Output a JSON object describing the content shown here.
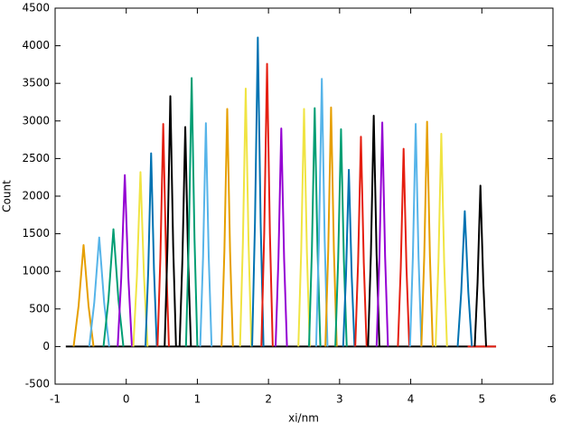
{
  "chart_data": {
    "type": "line",
    "xlabel": "xi/nm",
    "ylabel": "Count",
    "xlim": [
      -1,
      6
    ],
    "ylim": [
      -500,
      4500
    ],
    "xticks": [
      -1,
      0,
      1,
      2,
      3,
      4,
      5,
      6
    ],
    "yticks": [
      -500,
      0,
      500,
      1000,
      1500,
      2000,
      2500,
      3000,
      3500,
      4000,
      4500
    ],
    "grid": false,
    "series": [
      {
        "color": "#000000",
        "x": [
          -0.85,
          5.2
        ],
        "values": [
          0,
          0
        ]
      },
      {
        "color": "#e51e10",
        "x": [
          4.8,
          5.2
        ],
        "values": [
          0,
          0
        ]
      },
      {
        "color": "#e69f00",
        "x": [
          -0.74,
          -0.67,
          -0.6,
          -0.53,
          -0.46
        ],
        "values": [
          0,
          540,
          1350,
          540,
          0
        ]
      },
      {
        "color": "#56b4e9",
        "x": [
          -0.52,
          -0.45,
          -0.38,
          -0.31,
          -0.24
        ],
        "values": [
          0,
          580,
          1450,
          580,
          0
        ]
      },
      {
        "color": "#009e73",
        "x": [
          -0.32,
          -0.25,
          -0.18,
          -0.11,
          -0.04
        ],
        "values": [
          0,
          624,
          1560,
          624,
          0
        ]
      },
      {
        "color": "#9400d3",
        "x": [
          -0.12,
          -0.07,
          -0.02,
          0.03,
          0.08
        ],
        "values": [
          0,
          912,
          2280,
          912,
          0
        ]
      },
      {
        "color": "#f0e442",
        "x": [
          0.1,
          0.15,
          0.2,
          0.25,
          0.3
        ],
        "values": [
          0,
          928,
          2320,
          928,
          0
        ]
      },
      {
        "color": "#0072b2",
        "x": [
          0.27,
          0.31,
          0.35,
          0.39,
          0.43
        ],
        "values": [
          0,
          1028,
          2570,
          1028,
          0
        ]
      },
      {
        "color": "#e51e10",
        "x": [
          0.44,
          0.48,
          0.52,
          0.56,
          0.6
        ],
        "values": [
          0,
          1184,
          2960,
          1184,
          0
        ]
      },
      {
        "color": "#000000",
        "x": [
          0.54,
          0.58,
          0.62,
          0.66,
          0.7
        ],
        "values": [
          0,
          1332,
          3330,
          1332,
          0
        ]
      },
      {
        "color": "#000000",
        "x": [
          0.75,
          0.79,
          0.83,
          0.87,
          0.91
        ],
        "values": [
          0,
          1168,
          2920,
          1168,
          0
        ]
      },
      {
        "color": "#009e73",
        "x": [
          0.84,
          0.88,
          0.92,
          0.96,
          1
        ],
        "values": [
          0,
          1428,
          3570,
          1428,
          0
        ]
      },
      {
        "color": "#56b4e9",
        "x": [
          1.04,
          1.08,
          1.12,
          1.16,
          1.2
        ],
        "values": [
          0,
          1188,
          2970,
          1188,
          0
        ]
      },
      {
        "color": "#e69f00",
        "x": [
          1.34,
          1.38,
          1.42,
          1.46,
          1.5
        ],
        "values": [
          0,
          1264,
          3160,
          1264,
          0
        ]
      },
      {
        "color": "#f0e442",
        "x": [
          1.6,
          1.64,
          1.68,
          1.72,
          1.76
        ],
        "values": [
          0,
          1372,
          3430,
          1372,
          0
        ]
      },
      {
        "color": "#0072b2",
        "x": [
          1.77,
          1.81,
          1.85,
          1.89,
          1.93
        ],
        "values": [
          0,
          1644,
          4110,
          1644,
          0
        ]
      },
      {
        "color": "#e51e10",
        "x": [
          1.9,
          1.94,
          1.98,
          2.02,
          2.06
        ],
        "values": [
          0,
          1504,
          3760,
          1504,
          0
        ]
      },
      {
        "color": "#9400d3",
        "x": [
          2.1,
          2.14,
          2.18,
          2.22,
          2.26
        ],
        "values": [
          0,
          1160,
          2900,
          1160,
          0
        ]
      },
      {
        "color": "#f0e442",
        "x": [
          2.42,
          2.46,
          2.5,
          2.54,
          2.58
        ],
        "values": [
          0,
          1264,
          3160,
          1264,
          0
        ]
      },
      {
        "color": "#009e73",
        "x": [
          2.57,
          2.61,
          2.65,
          2.69,
          2.73
        ],
        "values": [
          0,
          1268,
          3170,
          1268,
          0
        ]
      },
      {
        "color": "#56b4e9",
        "x": [
          2.67,
          2.71,
          2.75,
          2.79,
          2.83
        ],
        "values": [
          0,
          1424,
          3560,
          1424,
          0
        ]
      },
      {
        "color": "#e69f00",
        "x": [
          2.8,
          2.84,
          2.88,
          2.92,
          2.96
        ],
        "values": [
          0,
          1272,
          3180,
          1272,
          0
        ]
      },
      {
        "color": "#009e73",
        "x": [
          2.94,
          2.98,
          3.02,
          3.06,
          3.1
        ],
        "values": [
          0,
          1156,
          2890,
          1156,
          0
        ]
      },
      {
        "color": "#0072b2",
        "x": [
          3.05,
          3.09,
          3.13,
          3.17,
          3.21
        ],
        "values": [
          0,
          940,
          2350,
          940,
          0
        ]
      },
      {
        "color": "#e51e10",
        "x": [
          3.22,
          3.26,
          3.3,
          3.34,
          3.38
        ],
        "values": [
          0,
          1116,
          2790,
          1116,
          0
        ]
      },
      {
        "color": "#000000",
        "x": [
          3.4,
          3.44,
          3.48,
          3.52,
          3.56
        ],
        "values": [
          0,
          1228,
          3070,
          1228,
          0
        ]
      },
      {
        "color": "#9400d3",
        "x": [
          3.52,
          3.56,
          3.6,
          3.64,
          3.68
        ],
        "values": [
          0,
          1192,
          2980,
          1192,
          0
        ]
      },
      {
        "color": "#e51e10",
        "x": [
          3.82,
          3.86,
          3.9,
          3.94,
          3.98
        ],
        "values": [
          0,
          1052,
          2630,
          1052,
          0
        ]
      },
      {
        "color": "#56b4e9",
        "x": [
          3.99,
          4.03,
          4.07,
          4.11,
          4.15
        ],
        "values": [
          0,
          1184,
          2960,
          1184,
          0
        ]
      },
      {
        "color": "#e69f00",
        "x": [
          4.15,
          4.19,
          4.23,
          4.27,
          4.31
        ],
        "values": [
          0,
          1196,
          2990,
          1196,
          0
        ]
      },
      {
        "color": "#f0e442",
        "x": [
          4.35,
          4.39,
          4.43,
          4.47,
          4.51
        ],
        "values": [
          0,
          1132,
          2830,
          1132,
          0
        ]
      },
      {
        "color": "#0072b2",
        "x": [
          4.66,
          4.71,
          4.76,
          4.81,
          4.86
        ],
        "values": [
          0,
          720,
          1800,
          720,
          0
        ]
      },
      {
        "color": "#000000",
        "x": [
          4.9,
          4.94,
          4.98,
          5.02,
          5.06
        ],
        "values": [
          0,
          856,
          2140,
          856,
          0
        ]
      }
    ]
  }
}
